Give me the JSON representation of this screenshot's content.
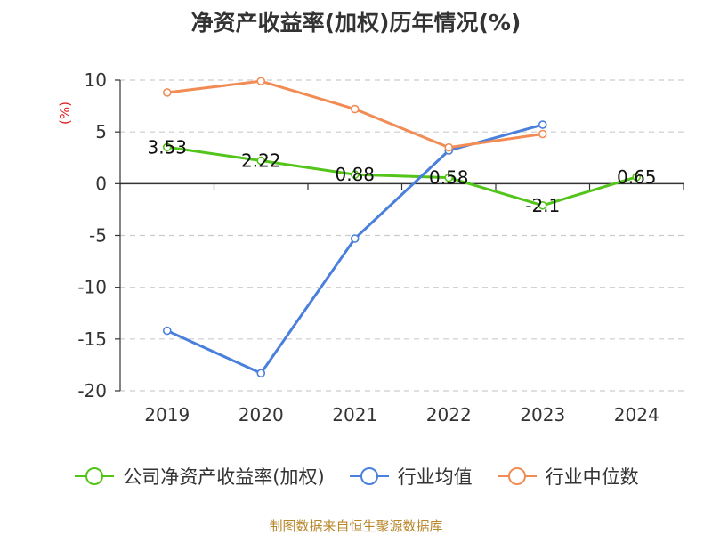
{
  "chart_data": {
    "type": "line",
    "title": "净资产收益率(加权)历年情况(%)",
    "ylabel": "(%)",
    "xlabel": "",
    "categories": [
      "2019",
      "2020",
      "2021",
      "2022",
      "2023",
      "2024"
    ],
    "ylim": [
      -20,
      10
    ],
    "yticks": [
      10,
      5,
      0,
      -5,
      -10,
      -15,
      -20
    ],
    "grid": true,
    "legend_position": "bottom",
    "series": [
      {
        "name": "公司净资产收益率(加权)",
        "color": "#52c41a",
        "values": [
          3.53,
          2.22,
          0.88,
          0.58,
          -2.1,
          0.65
        ],
        "labels": [
          "3.53",
          "2.22",
          "0.88",
          "0.58",
          "-2.1",
          "0.65"
        ]
      },
      {
        "name": "行业均值",
        "color": "#4a7fdc",
        "values": [
          -14.2,
          -18.3,
          -5.3,
          3.2,
          5.7,
          null
        ]
      },
      {
        "name": "行业中位数",
        "color": "#f28c55",
        "values": [
          8.8,
          9.9,
          7.2,
          3.5,
          4.8,
          null
        ]
      }
    ]
  },
  "source": "制图数据来自恒生聚源数据库"
}
